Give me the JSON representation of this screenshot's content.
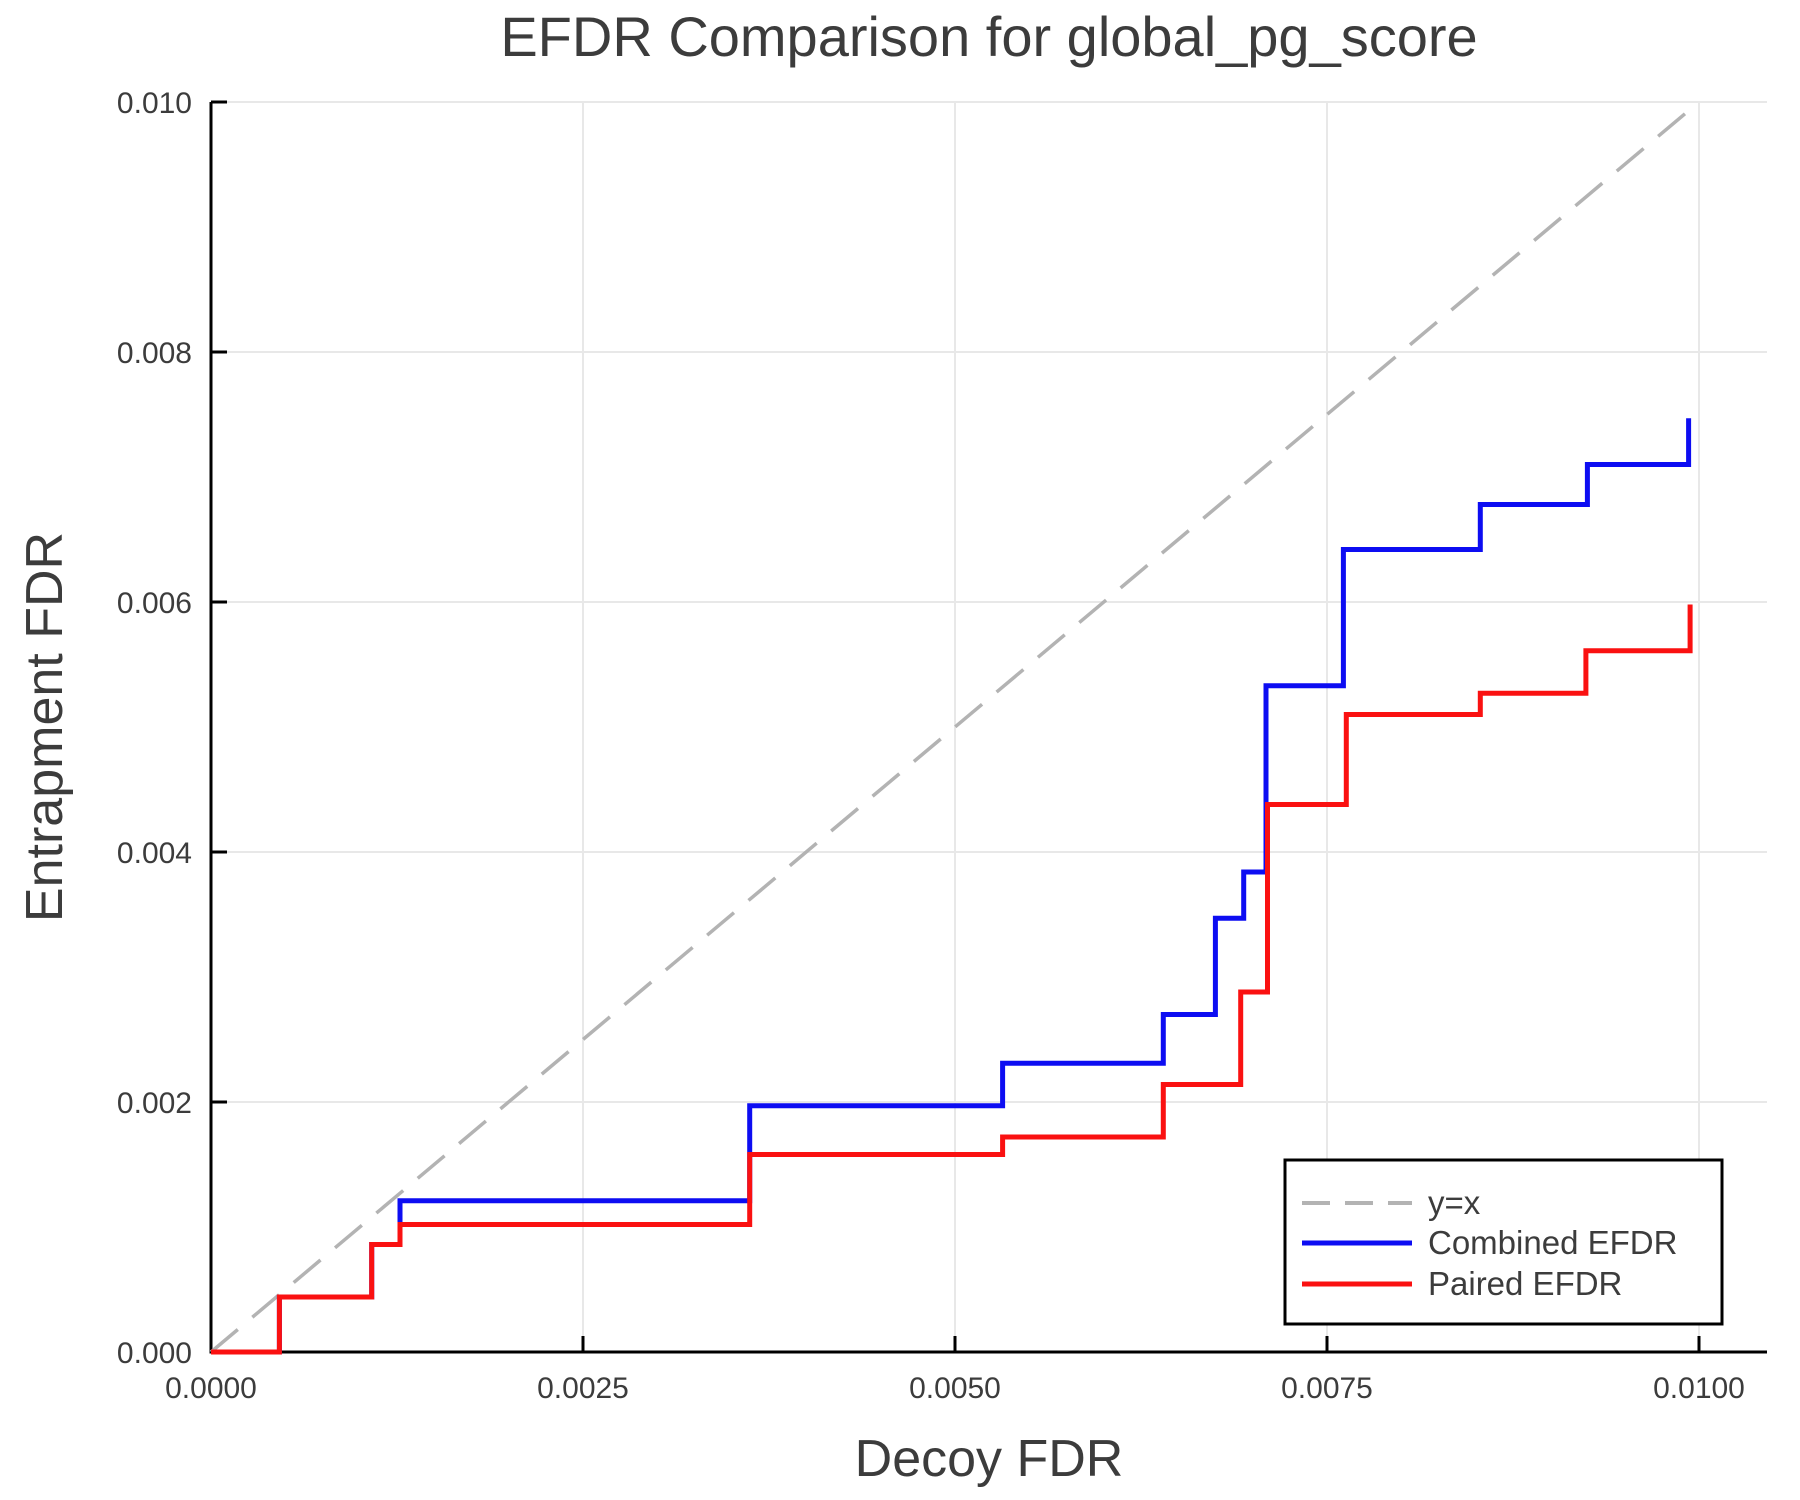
{
  "title": "EFDR Comparison for global_pg_score",
  "colors": {
    "combined": "#0d0df2",
    "paired": "#fa1111",
    "identity": "#b3b3b3",
    "grid": "#e8e8e8",
    "spine": "#000000",
    "text": "#3c3c3c",
    "plot_background": "#ffffff",
    "legend_border": "#000000",
    "legend_background": "#ffffff"
  },
  "chart_data": {
    "type": "line",
    "subtype": "step-post",
    "title": "EFDR Comparison for global_pg_score",
    "xlabel": "Decoy FDR",
    "ylabel": "Entrapment FDR",
    "xlim": [
      0,
      0.010457
    ],
    "ylim": [
      0,
      0.01
    ],
    "grid": true,
    "x_ticks": [
      0.0,
      0.0025,
      0.005,
      0.0075,
      0.01
    ],
    "x_tick_labels": [
      "0.0000",
      "0.0025",
      "0.0050",
      "0.0075",
      "0.0100"
    ],
    "y_ticks": [
      0.0,
      0.002,
      0.004,
      0.006,
      0.008,
      0.01
    ],
    "y_tick_labels": [
      "0.000",
      "0.002",
      "0.004",
      "0.006",
      "0.008",
      "0.010"
    ],
    "reference_line": {
      "label": "y=x",
      "style": "dashed",
      "color": "#b3b3b3",
      "from": [
        0,
        0
      ],
      "to": [
        0.01,
        0.01
      ]
    },
    "series": [
      {
        "name": "Combined EFDR",
        "color": "#0d0df2",
        "start": [
          0,
          0
        ],
        "steps": [
          [
            0.00046,
            0.00044
          ],
          [
            0.00108,
            0.00086
          ],
          [
            0.00127,
            0.00121
          ],
          [
            0.00362,
            0.00197
          ],
          [
            0.00532,
            0.00231
          ],
          [
            0.0064,
            0.0027
          ],
          [
            0.00675,
            0.00347
          ],
          [
            0.00694,
            0.00384
          ],
          [
            0.00709,
            0.00533
          ],
          [
            0.00761,
            0.00642
          ],
          [
            0.00853,
            0.00678
          ],
          [
            0.00925,
            0.0071
          ],
          [
            0.00993,
            0.00747
          ]
        ]
      },
      {
        "name": "Paired EFDR",
        "color": "#fa1111",
        "start": [
          0,
          0
        ],
        "steps": [
          [
            0.00046,
            0.00044
          ],
          [
            0.00108,
            0.00086
          ],
          [
            0.00127,
            0.00102
          ],
          [
            0.00362,
            0.00158
          ],
          [
            0.00532,
            0.00172
          ],
          [
            0.0064,
            0.00214
          ],
          [
            0.00692,
            0.00288
          ],
          [
            0.0071,
            0.00438
          ],
          [
            0.00763,
            0.0051
          ],
          [
            0.00853,
            0.00527
          ],
          [
            0.00924,
            0.00561
          ],
          [
            0.00994,
            0.00598
          ]
        ]
      }
    ],
    "legend": {
      "position": "lower right",
      "entries": [
        {
          "label": "y=x",
          "color": "#b3b3b3",
          "style": "dashed"
        },
        {
          "label": "Combined EFDR",
          "color": "#0d0df2",
          "style": "solid"
        },
        {
          "label": "Paired EFDR",
          "color": "#fa1111",
          "style": "solid"
        }
      ]
    }
  }
}
